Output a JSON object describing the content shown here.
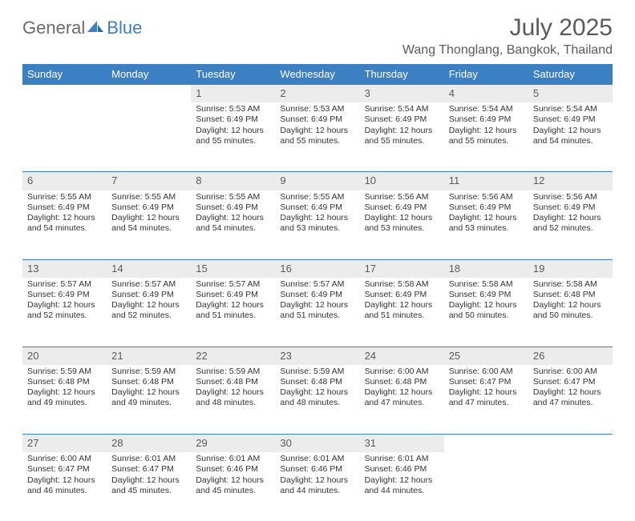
{
  "logo": {
    "text1": "General",
    "text2": "Blue"
  },
  "title": "July 2025",
  "location": "Wang Thonglang, Bangkok, Thailand",
  "colors": {
    "header_bg": "#3a80c3",
    "header_text": "#ffffff",
    "daynum_bg": "#ececec",
    "daynum_text": "#5a5a5a",
    "body_text": "#333333",
    "page_bg": "#ffffff",
    "logo_gray": "#6b6b6b",
    "logo_blue": "#3a80c3"
  },
  "weekdays": [
    "Sunday",
    "Monday",
    "Tuesday",
    "Wednesday",
    "Thursday",
    "Friday",
    "Saturday"
  ],
  "weeks": [
    [
      null,
      null,
      {
        "n": "1",
        "sunrise": "Sunrise: 5:53 AM",
        "sunset": "Sunset: 6:49 PM",
        "day1": "Daylight: 12 hours",
        "day2": "and 55 minutes."
      },
      {
        "n": "2",
        "sunrise": "Sunrise: 5:53 AM",
        "sunset": "Sunset: 6:49 PM",
        "day1": "Daylight: 12 hours",
        "day2": "and 55 minutes."
      },
      {
        "n": "3",
        "sunrise": "Sunrise: 5:54 AM",
        "sunset": "Sunset: 6:49 PM",
        "day1": "Daylight: 12 hours",
        "day2": "and 55 minutes."
      },
      {
        "n": "4",
        "sunrise": "Sunrise: 5:54 AM",
        "sunset": "Sunset: 6:49 PM",
        "day1": "Daylight: 12 hours",
        "day2": "and 55 minutes."
      },
      {
        "n": "5",
        "sunrise": "Sunrise: 5:54 AM",
        "sunset": "Sunset: 6:49 PM",
        "day1": "Daylight: 12 hours",
        "day2": "and 54 minutes."
      }
    ],
    [
      {
        "n": "6",
        "sunrise": "Sunrise: 5:55 AM",
        "sunset": "Sunset: 6:49 PM",
        "day1": "Daylight: 12 hours",
        "day2": "and 54 minutes."
      },
      {
        "n": "7",
        "sunrise": "Sunrise: 5:55 AM",
        "sunset": "Sunset: 6:49 PM",
        "day1": "Daylight: 12 hours",
        "day2": "and 54 minutes."
      },
      {
        "n": "8",
        "sunrise": "Sunrise: 5:55 AM",
        "sunset": "Sunset: 6:49 PM",
        "day1": "Daylight: 12 hours",
        "day2": "and 54 minutes."
      },
      {
        "n": "9",
        "sunrise": "Sunrise: 5:55 AM",
        "sunset": "Sunset: 6:49 PM",
        "day1": "Daylight: 12 hours",
        "day2": "and 53 minutes."
      },
      {
        "n": "10",
        "sunrise": "Sunrise: 5:56 AM",
        "sunset": "Sunset: 6:49 PM",
        "day1": "Daylight: 12 hours",
        "day2": "and 53 minutes."
      },
      {
        "n": "11",
        "sunrise": "Sunrise: 5:56 AM",
        "sunset": "Sunset: 6:49 PM",
        "day1": "Daylight: 12 hours",
        "day2": "and 53 minutes."
      },
      {
        "n": "12",
        "sunrise": "Sunrise: 5:56 AM",
        "sunset": "Sunset: 6:49 PM",
        "day1": "Daylight: 12 hours",
        "day2": "and 52 minutes."
      }
    ],
    [
      {
        "n": "13",
        "sunrise": "Sunrise: 5:57 AM",
        "sunset": "Sunset: 6:49 PM",
        "day1": "Daylight: 12 hours",
        "day2": "and 52 minutes."
      },
      {
        "n": "14",
        "sunrise": "Sunrise: 5:57 AM",
        "sunset": "Sunset: 6:49 PM",
        "day1": "Daylight: 12 hours",
        "day2": "and 52 minutes."
      },
      {
        "n": "15",
        "sunrise": "Sunrise: 5:57 AM",
        "sunset": "Sunset: 6:49 PM",
        "day1": "Daylight: 12 hours",
        "day2": "and 51 minutes."
      },
      {
        "n": "16",
        "sunrise": "Sunrise: 5:57 AM",
        "sunset": "Sunset: 6:49 PM",
        "day1": "Daylight: 12 hours",
        "day2": "and 51 minutes."
      },
      {
        "n": "17",
        "sunrise": "Sunrise: 5:58 AM",
        "sunset": "Sunset: 6:49 PM",
        "day1": "Daylight: 12 hours",
        "day2": "and 51 minutes."
      },
      {
        "n": "18",
        "sunrise": "Sunrise: 5:58 AM",
        "sunset": "Sunset: 6:49 PM",
        "day1": "Daylight: 12 hours",
        "day2": "and 50 minutes."
      },
      {
        "n": "19",
        "sunrise": "Sunrise: 5:58 AM",
        "sunset": "Sunset: 6:48 PM",
        "day1": "Daylight: 12 hours",
        "day2": "and 50 minutes."
      }
    ],
    [
      {
        "n": "20",
        "sunrise": "Sunrise: 5:59 AM",
        "sunset": "Sunset: 6:48 PM",
        "day1": "Daylight: 12 hours",
        "day2": "and 49 minutes."
      },
      {
        "n": "21",
        "sunrise": "Sunrise: 5:59 AM",
        "sunset": "Sunset: 6:48 PM",
        "day1": "Daylight: 12 hours",
        "day2": "and 49 minutes."
      },
      {
        "n": "22",
        "sunrise": "Sunrise: 5:59 AM",
        "sunset": "Sunset: 6:48 PM",
        "day1": "Daylight: 12 hours",
        "day2": "and 48 minutes."
      },
      {
        "n": "23",
        "sunrise": "Sunrise: 5:59 AM",
        "sunset": "Sunset: 6:48 PM",
        "day1": "Daylight: 12 hours",
        "day2": "and 48 minutes."
      },
      {
        "n": "24",
        "sunrise": "Sunrise: 6:00 AM",
        "sunset": "Sunset: 6:48 PM",
        "day1": "Daylight: 12 hours",
        "day2": "and 47 minutes."
      },
      {
        "n": "25",
        "sunrise": "Sunrise: 6:00 AM",
        "sunset": "Sunset: 6:47 PM",
        "day1": "Daylight: 12 hours",
        "day2": "and 47 minutes."
      },
      {
        "n": "26",
        "sunrise": "Sunrise: 6:00 AM",
        "sunset": "Sunset: 6:47 PM",
        "day1": "Daylight: 12 hours",
        "day2": "and 47 minutes."
      }
    ],
    [
      {
        "n": "27",
        "sunrise": "Sunrise: 6:00 AM",
        "sunset": "Sunset: 6:47 PM",
        "day1": "Daylight: 12 hours",
        "day2": "and 46 minutes."
      },
      {
        "n": "28",
        "sunrise": "Sunrise: 6:01 AM",
        "sunset": "Sunset: 6:47 PM",
        "day1": "Daylight: 12 hours",
        "day2": "and 45 minutes."
      },
      {
        "n": "29",
        "sunrise": "Sunrise: 6:01 AM",
        "sunset": "Sunset: 6:46 PM",
        "day1": "Daylight: 12 hours",
        "day2": "and 45 minutes."
      },
      {
        "n": "30",
        "sunrise": "Sunrise: 6:01 AM",
        "sunset": "Sunset: 6:46 PM",
        "day1": "Daylight: 12 hours",
        "day2": "and 44 minutes."
      },
      {
        "n": "31",
        "sunrise": "Sunrise: 6:01 AM",
        "sunset": "Sunset: 6:46 PM",
        "day1": "Daylight: 12 hours",
        "day2": "and 44 minutes."
      },
      null,
      null
    ]
  ]
}
